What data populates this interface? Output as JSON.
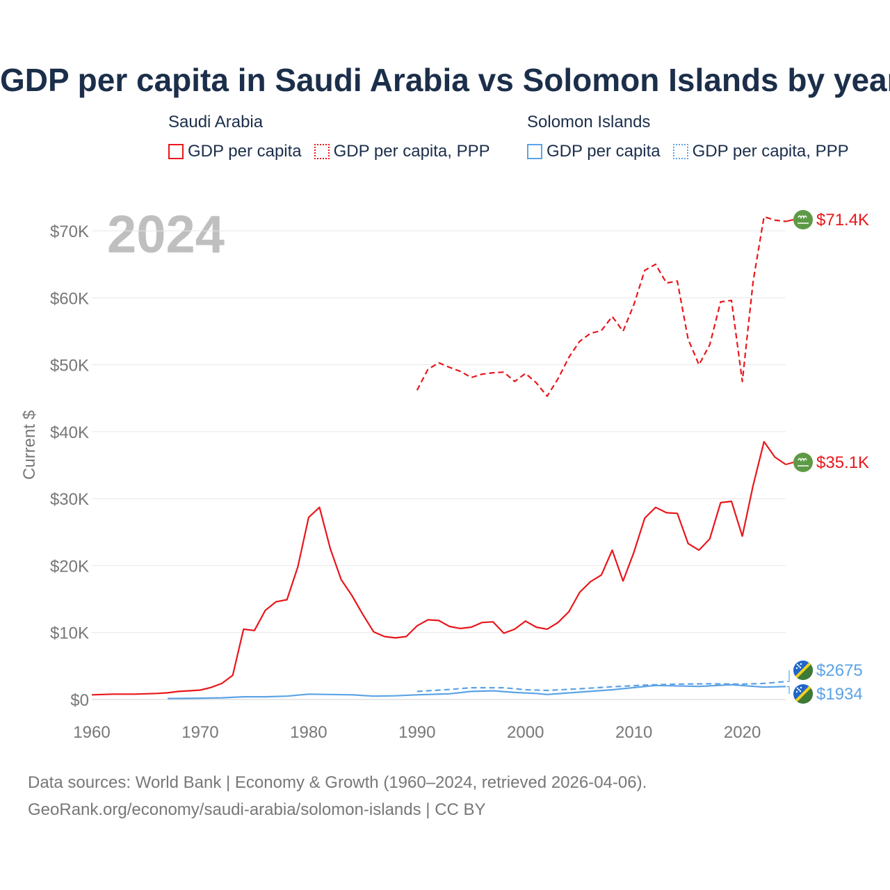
{
  "title": "GDP per capita in Saudi Arabia vs Solomon Islands by year",
  "legend": {
    "groups": [
      {
        "country": "Saudi Arabia",
        "color": "#e8161b",
        "items": [
          {
            "label": "GDP per capita",
            "style": "solid"
          },
          {
            "label": "GDP per capita, PPP",
            "style": "dotted"
          }
        ]
      },
      {
        "country": "Solomon Islands",
        "color": "#5ba3e6",
        "items": [
          {
            "label": "GDP per capita",
            "style": "solid"
          },
          {
            "label": "GDP per capita, PPP",
            "style": "dotted"
          }
        ]
      }
    ]
  },
  "footer": {
    "line1": "Data sources: World Bank | Economy & Growth (1960–2024, retrieved 2026-04-06).",
    "line2": "GeoRank.org/economy/saudi-arabia/solomon-islands | CC BY"
  },
  "chart_data": {
    "type": "line",
    "year_label": "2024",
    "ylabel": "Current $",
    "xlim": [
      1960,
      2024
    ],
    "ylim": [
      0,
      70000
    ],
    "x_ticks": [
      1960,
      1970,
      1980,
      1990,
      2000,
      2010,
      2020
    ],
    "x_tick_labels": [
      "1960",
      "1970",
      "1980",
      "1990",
      "2000",
      "2010",
      "2020"
    ],
    "y_ticks": [
      0,
      10000,
      20000,
      30000,
      40000,
      50000,
      60000,
      70000
    ],
    "y_tick_labels": [
      "$0",
      "$10K",
      "$20K",
      "$30K",
      "$40K",
      "$50K",
      "$60K",
      "$70K"
    ],
    "series": [
      {
        "name": "Saudi Arabia GDP per capita",
        "country": "Saudi Arabia",
        "color": "#e8161b",
        "dash": "solid",
        "end_label": "$35.1K",
        "flag": "saudi-arabia",
        "x": [
          1960,
          1962,
          1964,
          1966,
          1967,
          1968,
          1969,
          1970,
          1971,
          1972,
          1973,
          1974,
          1975,
          1976,
          1977,
          1978,
          1979,
          1980,
          1981,
          1982,
          1983,
          1984,
          1985,
          1986,
          1987,
          1988,
          1989,
          1990,
          1991,
          1992,
          1993,
          1994,
          1995,
          1996,
          1997,
          1998,
          1999,
          2000,
          2001,
          2002,
          2003,
          2004,
          2005,
          2006,
          2007,
          2008,
          2009,
          2010,
          2011,
          2012,
          2013,
          2014,
          2015,
          2016,
          2017,
          2018,
          2019,
          2020,
          2021,
          2022,
          2023,
          2024
        ],
        "y": [
          700,
          800,
          800,
          900,
          1000,
          1200,
          1300,
          1400,
          1800,
          2400,
          3600,
          10500,
          10300,
          13300,
          14600,
          14900,
          19800,
          27200,
          28700,
          22500,
          17900,
          15500,
          12700,
          10100,
          9400,
          9200,
          9400,
          11000,
          11900,
          11800,
          10900,
          10600,
          10800,
          11500,
          11600,
          9900,
          10500,
          11700,
          10800,
          10500,
          11500,
          13100,
          16000,
          17600,
          18600,
          22300,
          17700,
          22000,
          27100,
          28700,
          27900,
          27800,
          23300,
          22300,
          24000,
          29400,
          29600,
          24400,
          32000,
          38500,
          36200,
          35100
        ]
      },
      {
        "name": "Saudi Arabia GDP per capita, PPP",
        "country": "Saudi Arabia",
        "color": "#e8161b",
        "dash": "dashed",
        "end_label": "$71.4K",
        "flag": "saudi-arabia",
        "x": [
          1990,
          1991,
          1992,
          1993,
          1994,
          1995,
          1996,
          1997,
          1998,
          1999,
          2000,
          2001,
          2002,
          2003,
          2004,
          2005,
          2006,
          2007,
          2008,
          2009,
          2010,
          2011,
          2012,
          2013,
          2014,
          2015,
          2016,
          2017,
          2018,
          2019,
          2020,
          2021,
          2022,
          2023,
          2024
        ],
        "y": [
          46200,
          49300,
          50300,
          49600,
          49000,
          48100,
          48600,
          48800,
          48900,
          47500,
          48700,
          47300,
          45300,
          47900,
          51100,
          53500,
          54700,
          55100,
          57200,
          55000,
          59000,
          64100,
          65000,
          62200,
          62500,
          53800,
          50000,
          53000,
          59400,
          59600,
          47500,
          62500,
          72100,
          71600,
          71400
        ]
      },
      {
        "name": "Solomon Islands GDP per capita",
        "country": "Solomon Islands",
        "color": "#5ba3e6",
        "dash": "solid",
        "end_label": "$1934",
        "flag": "solomon-islands",
        "x": [
          1967,
          1970,
          1972,
          1974,
          1976,
          1978,
          1980,
          1982,
          1984,
          1986,
          1988,
          1990,
          1993,
          1995,
          1997,
          1999,
          2001,
          2002,
          2005,
          2008,
          2012,
          2016,
          2019,
          2022,
          2024
        ],
        "y": [
          150,
          200,
          250,
          400,
          400,
          500,
          800,
          750,
          700,
          500,
          550,
          700,
          850,
          1200,
          1300,
          1050,
          900,
          750,
          1100,
          1450,
          2100,
          1950,
          2200,
          1850,
          1934
        ]
      },
      {
        "name": "Solomon Islands GDP per capita, PPP",
        "country": "Solomon Islands",
        "color": "#5ba3e6",
        "dash": "dashed",
        "end_label": "$2675",
        "flag": "solomon-islands",
        "x": [
          1990,
          1993,
          1995,
          1998,
          2000,
          2002,
          2005,
          2008,
          2011,
          2014,
          2017,
          2020,
          2022,
          2024
        ],
        "y": [
          1200,
          1500,
          1750,
          1750,
          1450,
          1350,
          1600,
          1900,
          2150,
          2300,
          2350,
          2300,
          2400,
          2675
        ]
      }
    ]
  }
}
